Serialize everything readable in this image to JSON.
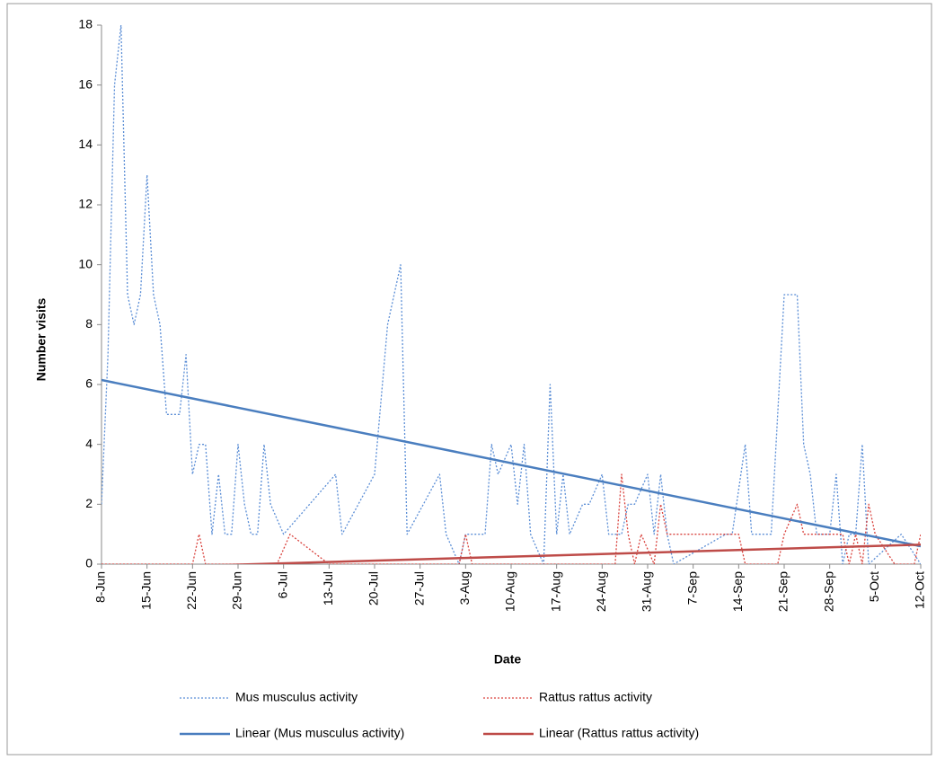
{
  "chart_data": {
    "type": "line",
    "y_label": "Number visits",
    "x_label": "Date",
    "xlim": [
      "8-Jun",
      "12-Oct"
    ],
    "xticks": [
      "8-Jun",
      "15-Jun",
      "22-Jun",
      "29-Jun",
      "6-Jul",
      "13-Jul",
      "20-Jul",
      "27-Jul",
      "3-Aug",
      "10-Aug",
      "17-Aug",
      "24-Aug",
      "31-Aug",
      "7-Sep",
      "14-Sep",
      "21-Sep",
      "28-Sep",
      "5-Oct",
      "12-Oct"
    ],
    "ylim": [
      0,
      18
    ],
    "yticks": [
      0,
      2,
      4,
      6,
      8,
      10,
      12,
      14,
      16,
      18
    ],
    "grid": false,
    "legend": "bottom",
    "series": [
      {
        "name": "Mus musculus activity",
        "color": "#5b8ed6",
        "style": "dotted",
        "x": [
          "8-Jun",
          "9-Jun",
          "10-Jun",
          "11-Jun",
          "12-Jun",
          "13-Jun",
          "14-Jun",
          "15-Jun",
          "16-Jun",
          "17-Jun",
          "18-Jun",
          "20-Jun",
          "21-Jun",
          "22-Jun",
          "23-Jun",
          "24-Jun",
          "25-Jun",
          "26-Jun",
          "27-Jun",
          "28-Jun",
          "29-Jun",
          "30-Jun",
          "1-Jul",
          "2-Jul",
          "3-Jul",
          "4-Jul",
          "6-Jul",
          "14-Jul",
          "15-Jul",
          "20-Jul",
          "22-Jul",
          "24-Jul",
          "25-Jul",
          "30-Jul",
          "31-Jul",
          "2-Aug",
          "3-Aug",
          "6-Aug",
          "7-Aug",
          "8-Aug",
          "10-Aug",
          "11-Aug",
          "12-Aug",
          "13-Aug",
          "15-Aug",
          "16-Aug",
          "17-Aug",
          "18-Aug",
          "19-Aug",
          "21-Aug",
          "22-Aug",
          "24-Aug",
          "25-Aug",
          "27-Aug",
          "28-Aug",
          "29-Aug",
          "31-Aug",
          "1-Sep",
          "2-Sep",
          "3-Sep",
          "4-Sep",
          "12-Sep",
          "13-Sep",
          "15-Sep",
          "16-Sep",
          "19-Sep",
          "21-Sep",
          "23-Sep",
          "24-Sep",
          "25-Sep",
          "26-Sep",
          "28-Sep",
          "29-Sep",
          "30-Sep",
          "1-Oct",
          "2-Oct",
          "3-Oct",
          "4-Oct",
          "9-Oct",
          "12-Oct"
        ],
        "values": [
          2,
          7,
          16,
          18,
          9,
          8,
          9,
          13,
          9,
          8,
          5,
          5,
          7,
          3,
          4,
          4,
          1,
          3,
          1,
          1,
          4,
          2,
          1,
          1,
          4,
          2,
          1,
          3,
          1,
          3,
          8,
          10,
          1,
          3,
          1,
          0,
          1,
          1,
          4,
          3,
          4,
          2,
          4,
          1,
          0,
          6,
          1,
          3,
          1,
          2,
          2,
          3,
          1,
          1,
          2,
          2,
          3,
          1,
          3,
          1,
          0,
          1,
          1,
          4,
          1,
          1,
          9,
          9,
          4,
          3,
          1,
          1,
          3,
          0,
          1,
          1,
          4,
          0,
          1,
          0
        ]
      },
      {
        "name": "Rattus rattus activity",
        "color": "#d9413c",
        "style": "dotted",
        "x": [
          "8-Jun",
          "22-Jun",
          "23-Jun",
          "24-Jun",
          "5-Jul",
          "7-Jul",
          "13-Jul",
          "2-Aug",
          "3-Aug",
          "4-Aug",
          "26-Aug",
          "27-Aug",
          "28-Aug",
          "29-Aug",
          "30-Aug",
          "1-Sep",
          "2-Sep",
          "3-Sep",
          "14-Sep",
          "15-Sep",
          "20-Sep",
          "21-Sep",
          "23-Sep",
          "24-Sep",
          "30-Sep",
          "1-Oct",
          "2-Oct",
          "3-Oct",
          "4-Oct",
          "5-Oct",
          "8-Oct",
          "11-Oct",
          "12-Oct"
        ],
        "values": [
          0,
          0,
          1,
          0,
          0,
          1,
          0,
          0,
          1,
          0,
          0,
          3,
          1,
          0,
          1,
          0,
          2,
          1,
          1,
          0,
          0,
          1,
          2,
          1,
          1,
          0,
          1,
          0,
          2,
          1,
          0,
          0,
          1
        ]
      },
      {
        "name": "Linear (Mus musculus activity)",
        "color": "#4a7ebf",
        "style": "solid",
        "x": [
          "8-Jun",
          "12-Oct"
        ],
        "values": [
          6.15,
          0.6
        ]
      },
      {
        "name": "Linear (Rattus rattus activity)",
        "color": "#be4b48",
        "style": "solid",
        "x": [
          "8-Jun",
          "12-Oct"
        ],
        "values": [
          -0.15,
          0.65
        ]
      }
    ]
  }
}
